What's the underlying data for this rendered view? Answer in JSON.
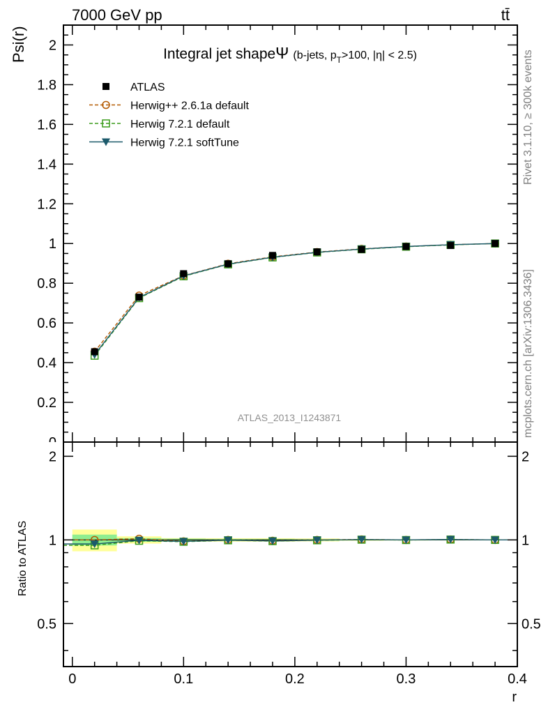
{
  "header": {
    "energy_label": "7000 GeV pp",
    "process_label": "tt̄",
    "rivet_label": "Rivet 3.1.10, ≥ 300k events",
    "mcplots_label": "mcplots.cern.ch [arXiv:1306.3436]",
    "analysis_label": "ATLAS_2013_I1243871"
  },
  "colors": {
    "atlas": "#000000",
    "herwigpp": "#b35900",
    "herwig721": "#3a9c1a",
    "softtune": "#1c5a6b",
    "band_inner": "#90ee90",
    "band_outer": "#ffff99"
  },
  "chart_data": [
    {
      "type": "line",
      "panel": "main",
      "title": "Integral jet shape Ψ (b-jets, p_T>100, |η| < 2.5)",
      "title_parts": {
        "main": "Integral jet shape",
        "psi": "Ψ",
        "cut_pre": "(b-jets, p",
        "cut_sub": "T",
        "cut_post": ">100, |η| < 2.5)"
      },
      "xlabel": "r",
      "ylabel": "Psi(r)",
      "xlim": [
        -0.008,
        0.4
      ],
      "ylim": [
        0,
        2.1
      ],
      "x_ticks": [
        "0",
        "0.1",
        "0.2",
        "0.3",
        "0.4"
      ],
      "y_ticks": [
        "0.2",
        "0.4",
        "0.6",
        "0.8",
        "1",
        "1.2",
        "1.4",
        "1.6",
        "1.8",
        "2"
      ],
      "legend_position": "top-left",
      "x": [
        0.02,
        0.06,
        0.1,
        0.14,
        0.18,
        0.22,
        0.26,
        0.3,
        0.34,
        0.38
      ],
      "series": [
        {
          "name": "ATLAS",
          "marker": "square",
          "values": [
            0.455,
            0.73,
            0.848,
            0.898,
            0.94,
            0.958,
            0.97,
            0.985,
            0.99,
            1.0
          ]
        },
        {
          "name": "Herwig++ 2.6.1a default",
          "marker": "circle",
          "values": [
            0.455,
            0.738,
            0.838,
            0.898,
            0.933,
            0.957,
            0.973,
            0.985,
            0.994,
            1.0
          ]
        },
        {
          "name": "Herwig 7.2.1 default",
          "marker": "open-square",
          "values": [
            0.435,
            0.725,
            0.835,
            0.895,
            0.93,
            0.955,
            0.971,
            0.984,
            0.993,
            1.0
          ]
        },
        {
          "name": "Herwig 7.2.1 softTune",
          "marker": "triangle-down",
          "values": [
            0.44,
            0.728,
            0.837,
            0.896,
            0.931,
            0.956,
            0.972,
            0.985,
            0.994,
            1.0
          ]
        }
      ]
    },
    {
      "type": "line",
      "panel": "ratio",
      "xlabel": "r",
      "ylabel": "Ratio to ATLAS",
      "xlim": [
        -0.008,
        0.4
      ],
      "ylim": [
        0.35,
        2.25
      ],
      "y_ticks": [
        "0.5",
        "1",
        "2"
      ],
      "x": [
        0.02,
        0.06,
        0.1,
        0.14,
        0.18,
        0.22,
        0.26,
        0.3,
        0.34,
        0.38
      ],
      "bands": [
        {
          "x0": 0.0,
          "x1": 0.04,
          "inner": [
            0.955,
            1.045
          ],
          "outer": [
            0.91,
            1.09
          ]
        },
        {
          "x0": 0.04,
          "x1": 0.08,
          "inner": [
            0.985,
            1.015
          ],
          "outer": [
            0.97,
            1.03
          ]
        },
        {
          "x0": 0.08,
          "x1": 0.12,
          "inner": [
            0.99,
            1.01
          ],
          "outer": [
            0.985,
            1.015
          ]
        },
        {
          "x0": 0.12,
          "x1": 0.16,
          "inner": [
            0.992,
            1.008
          ],
          "outer": [
            0.986,
            1.014
          ]
        },
        {
          "x0": 0.16,
          "x1": 0.2,
          "inner": [
            0.992,
            1.008
          ],
          "outer": [
            0.986,
            1.014
          ]
        },
        {
          "x0": 0.2,
          "x1": 0.24,
          "inner": [
            0.994,
            1.006
          ],
          "outer": [
            0.988,
            1.012
          ]
        },
        {
          "x0": 0.24,
          "x1": 0.28,
          "inner": [
            0.996,
            1.004
          ],
          "outer": [
            0.993,
            1.007
          ]
        },
        {
          "x0": 0.28,
          "x1": 0.32,
          "inner": [
            0.997,
            1.003
          ],
          "outer": [
            0.995,
            1.005
          ]
        },
        {
          "x0": 0.32,
          "x1": 0.36,
          "inner": [
            0.998,
            1.002
          ],
          "outer": [
            0.996,
            1.004
          ]
        },
        {
          "x0": 0.36,
          "x1": 0.4,
          "inner": [
            0.999,
            1.001
          ],
          "outer": [
            0.998,
            1.002
          ]
        }
      ],
      "series": [
        {
          "name": "Herwig++ 2.6.1a default",
          "values": [
            1.0,
            1.01,
            0.988,
            1.0,
            0.993,
            1.0,
            1.004,
            1.0,
            1.004,
            1.0
          ]
        },
        {
          "name": "Herwig 7.2.1 default",
          "values": [
            0.956,
            0.993,
            0.985,
            0.997,
            0.99,
            0.997,
            1.002,
            0.999,
            1.003,
            1.0
          ]
        },
        {
          "name": "Herwig 7.2.1 softTune",
          "values": [
            0.967,
            0.997,
            0.987,
            0.998,
            0.991,
            0.998,
            1.003,
            1.0,
            1.004,
            1.0
          ]
        }
      ]
    }
  ]
}
